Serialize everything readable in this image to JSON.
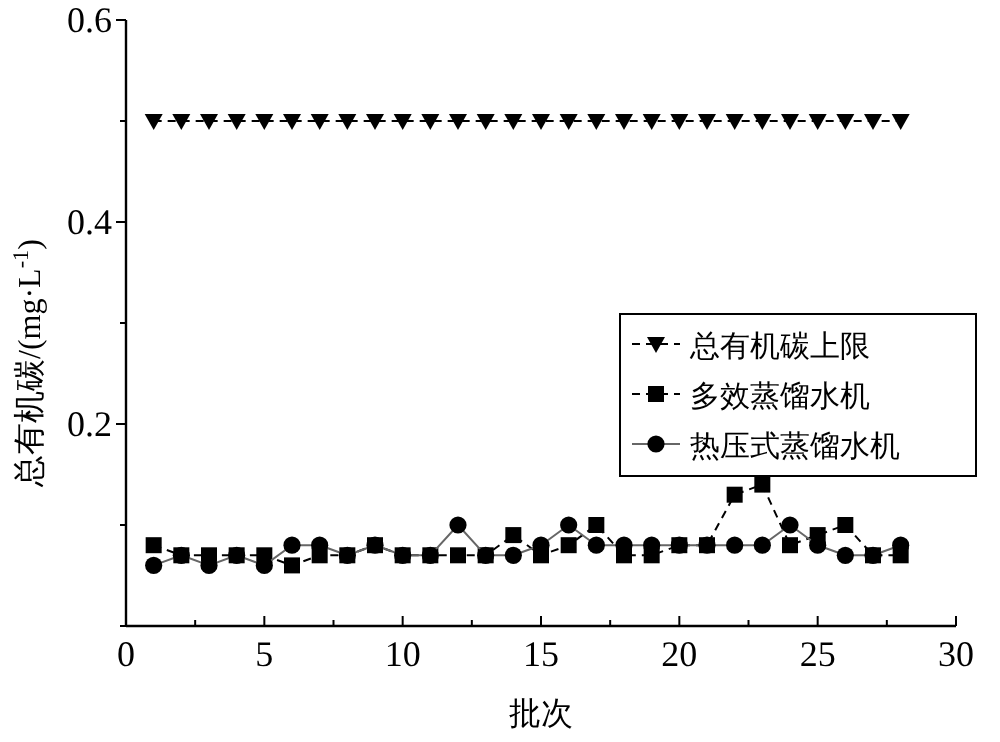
{
  "chart_data": {
    "type": "line",
    "xlabel": "批次",
    "ylabel": "总有机碳/(mg·L$^{-1}$)",
    "x": [
      1,
      2,
      3,
      4,
      5,
      6,
      7,
      8,
      9,
      10,
      11,
      12,
      13,
      14,
      15,
      16,
      17,
      18,
      19,
      20,
      21,
      22,
      23,
      24,
      25,
      26,
      27,
      28
    ],
    "series": [
      {
        "name": "总有机碳上限",
        "color": "#000000",
        "marker": "triangle",
        "line_style": "dashed",
        "values": [
          0.5,
          0.5,
          0.5,
          0.5,
          0.5,
          0.5,
          0.5,
          0.5,
          0.5,
          0.5,
          0.5,
          0.5,
          0.5,
          0.5,
          0.5,
          0.5,
          0.5,
          0.5,
          0.5,
          0.5,
          0.5,
          0.5,
          0.5,
          0.5,
          0.5,
          0.5,
          0.5,
          0.5
        ]
      },
      {
        "name": "多效蒸馏水机",
        "color": "#000000",
        "marker": "square",
        "line_style": "dashed",
        "values": [
          0.08,
          0.07,
          0.07,
          0.07,
          0.07,
          0.06,
          0.07,
          0.07,
          0.08,
          0.07,
          0.07,
          0.07,
          0.07,
          0.09,
          0.07,
          0.08,
          0.1,
          0.07,
          0.07,
          0.08,
          0.08,
          0.13,
          0.14,
          0.08,
          0.09,
          0.1,
          0.07,
          0.07
        ]
      },
      {
        "name": "热压式蒸馏水机",
        "color": "#000000",
        "marker": "circle",
        "line_style": "solid",
        "values": [
          0.06,
          0.07,
          0.06,
          0.07,
          0.06,
          0.08,
          0.08,
          0.07,
          0.08,
          0.07,
          0.07,
          0.1,
          0.07,
          0.07,
          0.08,
          0.1,
          0.08,
          0.08,
          0.08,
          0.08,
          0.08,
          0.08,
          0.08,
          0.1,
          0.08,
          0.07,
          0.07,
          0.08
        ]
      }
    ],
    "xlim": [
      0,
      30
    ],
    "xticks": [
      0,
      {
        "value": 2.5,
        "label": null
      },
      5,
      {
        "value": 7.5,
        "label": null
      },
      10,
      {
        "value": 12.5,
        "label": null
      },
      15,
      {
        "value": 17.5,
        "label": null
      },
      20,
      {
        "value": 22.5,
        "label": null
      },
      25,
      {
        "value": 27.5,
        "label": null
      },
      30
    ],
    "ylim": [
      0,
      0.6
    ],
    "yticks": [
      {
        "value": 0,
        "label": null
      },
      {
        "value": 0.1,
        "label": null
      },
      0.2,
      {
        "value": 0.3,
        "label": null
      },
      0.4,
      {
        "value": 0.5,
        "label": null
      },
      0.6
    ],
    "legend": "right",
    "grid": false
  }
}
